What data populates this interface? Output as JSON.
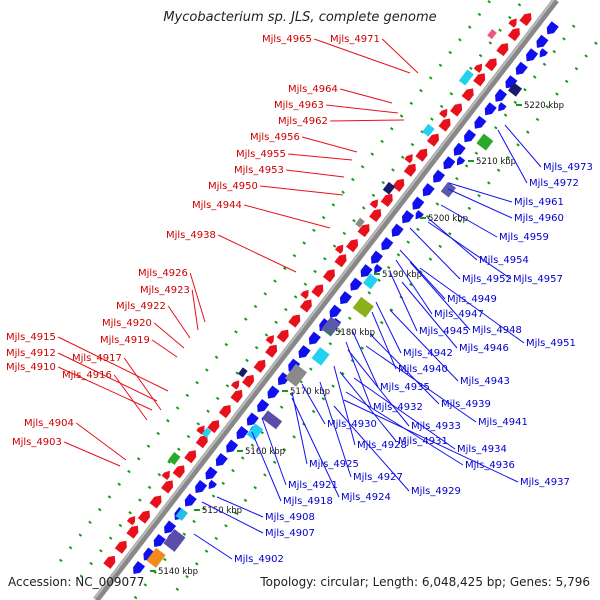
{
  "title": "Mycobacterium sp. JLS, complete genome",
  "accession": "Accession: NC_009077",
  "topology": "Topology: circular; Length: 6,048,425 bp; Genes: 5,796",
  "colors": {
    "forward": "#e8101a",
    "reverse": "#1010ee",
    "axis": "#888888",
    "tick": "#1a9a1a"
  },
  "kbp_ticks": [
    "5140 kbp",
    "5150 kbp",
    "5160 kbp",
    "5170 kbp",
    "5180 kbp",
    "5190 kbp",
    "5200 kbp",
    "5210 kbp",
    "5220 kbp"
  ],
  "left_labels": [
    "Mjls_4965",
    "Mjls_4971",
    "Mjls_4964",
    "Mjls_4963",
    "Mjls_4962",
    "Mjls_4956",
    "Mjls_4955",
    "Mjls_4953",
    "Mjls_4950",
    "Mjls_4944",
    "Mjls_4938",
    "Mjls_4926",
    "Mjls_4923",
    "Mjls_4922",
    "Mjls_4920",
    "Mjls_4919",
    "Mjls_4915",
    "Mjls_4912",
    "Mjls_4917",
    "Mjls_4910",
    "Mjls_4916",
    "Mjls_4904",
    "Mjls_4903"
  ],
  "right_labels": [
    "Mjls_4973",
    "Mjls_4972",
    "Mjls_4961",
    "Mjls_4960",
    "Mjls_4959",
    "Mjls_4954",
    "Mjls_4952",
    "Mjls_4957",
    "Mjls_4949",
    "Mjls_4947",
    "Mjls_4948",
    "Mjls_4945",
    "Mjls_4951",
    "Mjls_4946",
    "Mjls_4942",
    "Mjls_4940",
    "Mjls_4943",
    "Mjls_4935",
    "Mjls_4939",
    "Mjls_4932",
    "Mjls_4941",
    "Mjls_4933",
    "Mjls_4930",
    "Mjls_4928",
    "Mjls_4931",
    "Mjls_4934",
    "Mjls_4925",
    "Mjls_4927",
    "Mjls_4936",
    "Mjls_4937",
    "Mjls_4924",
    "Mjls_4929",
    "Mjls_4921",
    "Mjls_4918",
    "Mjls_4908",
    "Mjls_4907",
    "Mjls_4902"
  ]
}
